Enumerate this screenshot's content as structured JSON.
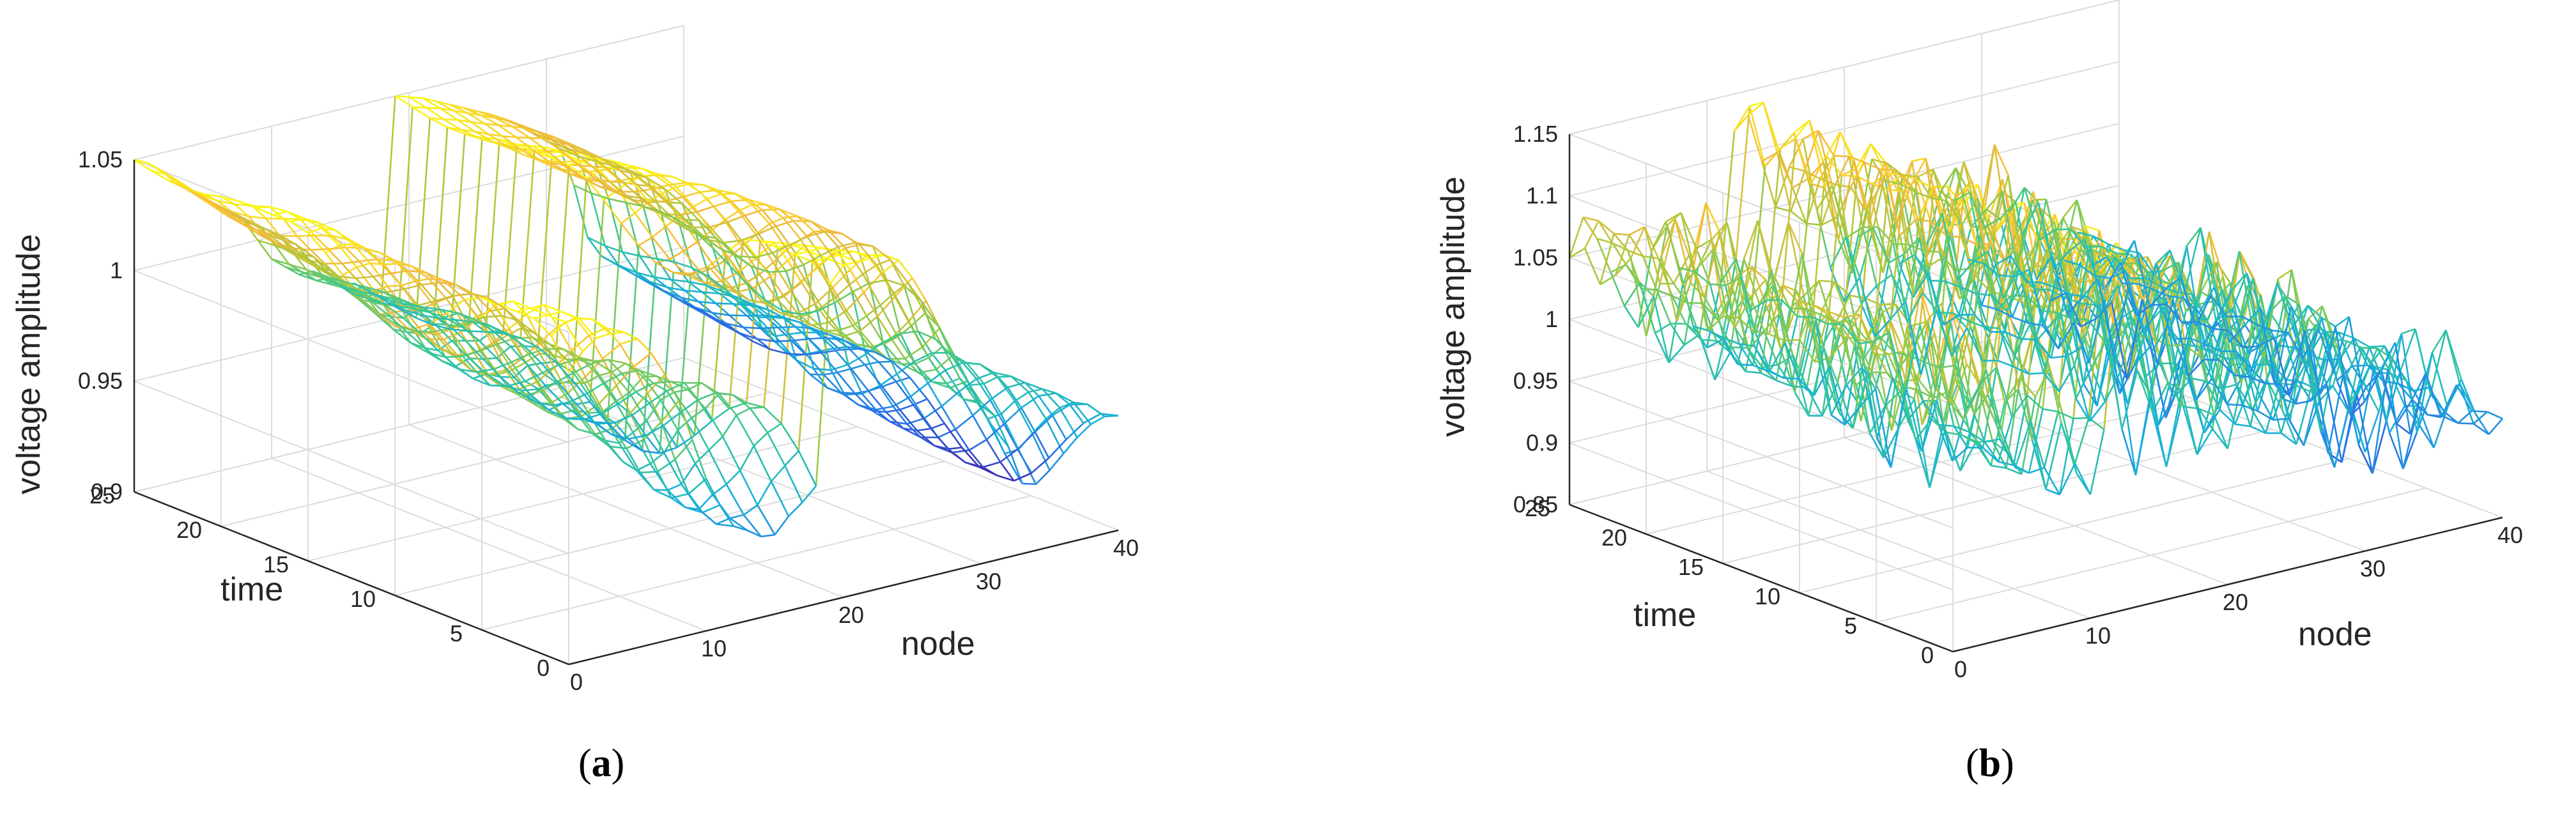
{
  "figure": {
    "captions": [
      {
        "open": "(",
        "letter": "a",
        "close": ")"
      },
      {
        "open": "(",
        "letter": "b",
        "close": ")"
      }
    ]
  },
  "chart_data": [
    {
      "type": "surface-3d-mesh",
      "panel": "a",
      "zlabel": "voltage amplitude",
      "xlabel": "node",
      "ylabel": "time",
      "xlim": [
        0,
        40
      ],
      "ylim": [
        0,
        25
      ],
      "zlim": [
        0.9,
        1.05
      ],
      "x_ticks": [
        "0",
        "10",
        "20",
        "30",
        "40"
      ],
      "y_ticks": [
        "0",
        "5",
        "10",
        "15",
        "20",
        "25"
      ],
      "z_ticks": [
        "0.9",
        "0.95",
        "1",
        "1.05"
      ],
      "colormap": [
        "#3e26a8",
        "#2c6fe8",
        "#19b2d6",
        "#39c894",
        "#a6c93c",
        "#f6ba3c",
        "#f9fb15"
      ],
      "node_profile": [
        1.05,
        1.047,
        1.042,
        1.035,
        1.03,
        1.025,
        1.02,
        1.015,
        1.01,
        1.0,
        0.99,
        0.985,
        0.98,
        0.98,
        0.975,
        0.97,
        0.97,
        0.965,
        0.96,
        1.05,
        1.048,
        1.046,
        1.043,
        1.04,
        1.037,
        1.034,
        1.031,
        1.027,
        1.023,
        1.018,
        1.013,
        1.008,
        0.99,
        0.965,
        0.955,
        0.95,
        0.945,
        0.94,
        0.935,
        0.93,
        0.925
      ],
      "time_scale_min": 0.88,
      "time_scale_max": 1.0
    },
    {
      "type": "surface-3d-mesh",
      "panel": "b",
      "zlabel": "voltage amplitude",
      "xlabel": "node",
      "ylabel": "time",
      "xlim": [
        0,
        40
      ],
      "ylim": [
        0,
        25
      ],
      "zlim": [
        0.85,
        1.15
      ],
      "x_ticks": [
        "0",
        "10",
        "20",
        "30",
        "40"
      ],
      "y_ticks": [
        "0",
        "5",
        "10",
        "15",
        "20",
        "25"
      ],
      "z_ticks": [
        "0.85",
        "0.9",
        "0.95",
        "1",
        "1.05",
        "1.1",
        "1.15"
      ],
      "colormap": [
        "#3e26a8",
        "#2c6fe8",
        "#19b2d6",
        "#39c894",
        "#a6c93c",
        "#f6ba3c",
        "#f9fb15"
      ],
      "node_profile": [
        1.05,
        1.08,
        1.06,
        1.03,
        1.0,
        0.98,
        1.04,
        1.06,
        1.02,
        0.97,
        0.95,
        1.0,
        1.12,
        1.13,
        1.09,
        1.05,
        1.08,
        1.1,
        1.04,
        0.99,
        0.96,
        1.01,
        1.07,
        1.05,
        0.98,
        0.95,
        0.99,
        1.03,
        1.02,
        0.97,
        0.93,
        0.96,
        1.0,
        0.98,
        0.94,
        0.92,
        0.95,
        0.97,
        0.94,
        0.92,
        0.93
      ],
      "time_variation": [
        0.0,
        0.04,
        -0.03,
        0.05,
        -0.04,
        0.02,
        -0.05,
        0.03,
        0.0,
        -0.03,
        0.04,
        -0.02,
        0.03,
        -0.04,
        0.02,
        0.0,
        -0.03,
        0.05,
        -0.02,
        0.03,
        -0.04,
        0.02,
        0.0,
        -0.02,
        0.03,
        0.0
      ]
    }
  ]
}
